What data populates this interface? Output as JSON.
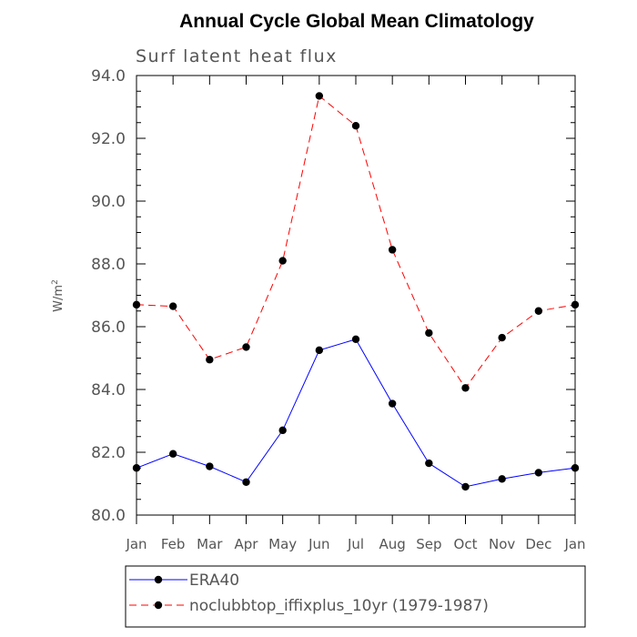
{
  "chart_data": {
    "type": "line",
    "title": "Annual Cycle Global Mean Climatology",
    "subtitle": "Surf latent heat flux",
    "ylabel": "W/m",
    "ylabel_sup": "2",
    "xlabel": "",
    "categories": [
      "Jan",
      "Feb",
      "Mar",
      "Apr",
      "May",
      "Jun",
      "Jul",
      "Aug",
      "Sep",
      "Oct",
      "Nov",
      "Dec",
      "Jan"
    ],
    "ylim": [
      80.0,
      94.0
    ],
    "yticks": [
      "80.0",
      "82.0",
      "84.0",
      "86.0",
      "88.0",
      "90.0",
      "92.0",
      "94.0"
    ],
    "grid": false,
    "legend_position": "bottom",
    "series": [
      {
        "name": "ERA40",
        "color": "#0000ff",
        "dash": "solid",
        "values": [
          81.5,
          81.95,
          81.55,
          81.05,
          82.7,
          85.25,
          85.6,
          83.55,
          81.65,
          80.9,
          81.15,
          81.35,
          81.5
        ]
      },
      {
        "name": "noclubbtop_iffixplus_10yr (1979-1987)",
        "color": "#ff0000",
        "dash": "dashed",
        "values": [
          86.7,
          86.65,
          84.95,
          85.35,
          88.1,
          93.35,
          92.4,
          88.45,
          85.8,
          84.05,
          85.65,
          86.5,
          86.7
        ]
      }
    ]
  }
}
